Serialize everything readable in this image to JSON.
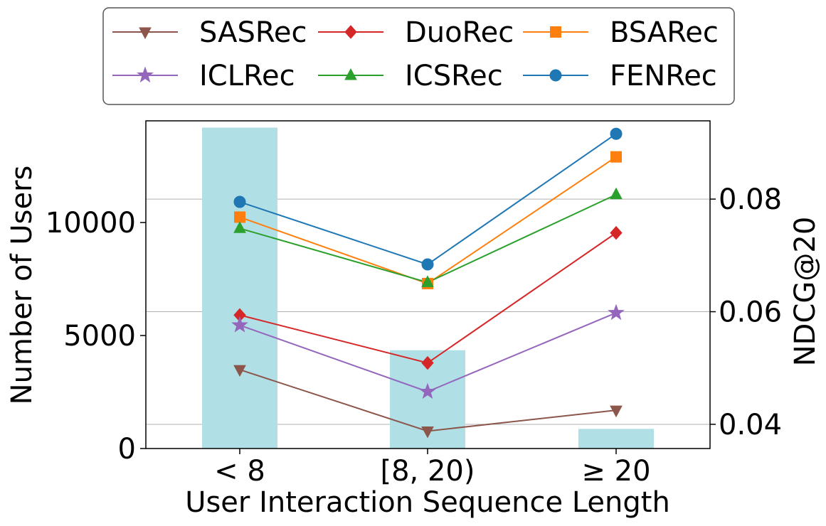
{
  "chart_data": {
    "type": "bar+line",
    "categories": [
      "< 8",
      "[8, 20)",
      "≥ 20"
    ],
    "xlabel": "User Interaction Sequence Length",
    "ylabel_left": "Number of Users",
    "ylabel_right": "NDCG@20",
    "bars": {
      "values": [
        14200,
        4350,
        870
      ],
      "color": "#b0e0e6"
    },
    "left_axis": {
      "ylim": [
        0,
        14500
      ],
      "ticks": [
        0,
        5000,
        10000
      ]
    },
    "right_axis": {
      "ylim": [
        0.0357,
        0.0939
      ],
      "ticks": [
        0.04,
        0.06,
        0.08
      ],
      "tick_labels": [
        "0.04",
        "0.06",
        "0.08"
      ]
    },
    "grid": "horizontal at right-axis ticks",
    "legend": {
      "placement": "top",
      "columns": 3
    },
    "series": [
      {
        "name": "SASRec",
        "values": [
          0.0497,
          0.0388,
          0.0425
        ],
        "color": "#8c564b",
        "marker": "triangle-down"
      },
      {
        "name": "DuoRec",
        "values": [
          0.0594,
          0.0509,
          0.074
        ],
        "color": "#d62728",
        "marker": "diamond"
      },
      {
        "name": "BSARec",
        "values": [
          0.0768,
          0.065,
          0.0875
        ],
        "color": "#ff7f0e",
        "marker": "square"
      },
      {
        "name": "ICLRec",
        "values": [
          0.0576,
          0.0458,
          0.0598
        ],
        "color": "#9467bd",
        "marker": "star"
      },
      {
        "name": "ICSRec",
        "values": [
          0.0748,
          0.0652,
          0.0808
        ],
        "color": "#2ca02c",
        "marker": "triangle-up"
      },
      {
        "name": "FENRec",
        "values": [
          0.0795,
          0.0684,
          0.0916
        ],
        "color": "#1f77b4",
        "marker": "circle"
      }
    ]
  }
}
